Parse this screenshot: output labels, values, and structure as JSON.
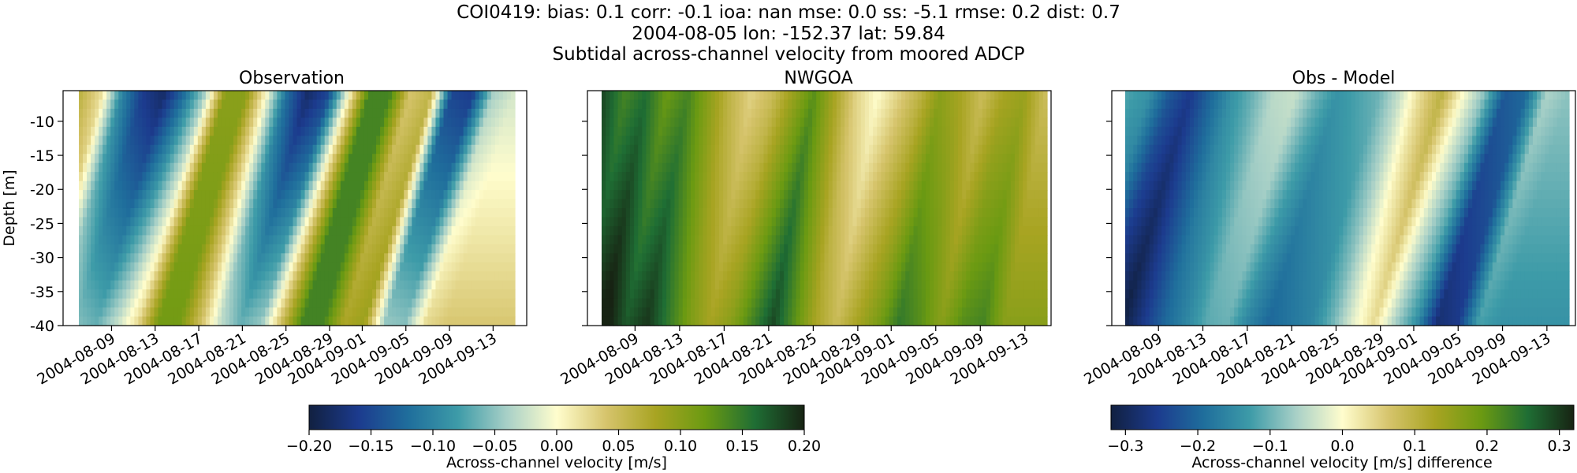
{
  "figure": {
    "title_line1": "COI0419: bias: 0.1  corr: -0.1  ioa: nan  mse: 0.0  ss: -5.1  rmse: 0.2  dist: 0.7",
    "title_line2": "2004-08-05 lon: -152.37 lat: 59.84",
    "title_line3": "Subtidal across-channel velocity from moored ADCP"
  },
  "chart_data": [
    {
      "type": "heatmap",
      "title": "Observation",
      "ylabel": "Depth [m]",
      "ylim": [
        -40,
        -5.5
      ],
      "yticks": [
        "-10",
        "-15",
        "-20",
        "-25",
        "-30",
        "-35",
        "-40"
      ],
      "xticks": [
        "2004-08-09",
        "2004-08-13",
        "2004-08-17",
        "2004-08-21",
        "2004-08-25",
        "2004-08-29",
        "2004-09-01",
        "2004-09-05",
        "2004-09-09",
        "2004-09-13"
      ],
      "x_start": "2004-08-06",
      "x_end": "2004-09-15",
      "colormap": "delta",
      "vmin": -0.2,
      "vmax": 0.2,
      "approx_surface_velocity": [
        0.06,
        0.02,
        -0.1,
        -0.16,
        -0.18,
        -0.12,
        -0.04,
        0.1,
        0.1,
        0.0,
        -0.12,
        -0.18,
        -0.15,
        0.0,
        0.14,
        0.14,
        0.04,
        0.06,
        -0.15,
        -0.16,
        -0.04,
        -0.02
      ]
    },
    {
      "type": "heatmap",
      "title": "NWGOA",
      "ylabel": "",
      "ylim": [
        -40,
        -5.5
      ],
      "yticks": [
        "-10",
        "-15",
        "-20",
        "-25",
        "-30",
        "-35",
        "-40"
      ],
      "xticks": [
        "2004-08-09",
        "2004-08-13",
        "2004-08-17",
        "2004-08-21",
        "2004-08-25",
        "2004-08-29",
        "2004-09-01",
        "2004-09-05",
        "2004-09-09",
        "2004-09-13"
      ],
      "x_start": "2004-08-06",
      "x_end": "2004-09-15",
      "colormap": "delta",
      "vmin": -0.2,
      "vmax": 0.2,
      "approx_surface_velocity": [
        0.18,
        0.14,
        0.16,
        0.12,
        0.14,
        0.1,
        0.06,
        0.03,
        0.05,
        0.09,
        0.13,
        0.08,
        0.03,
        0.0,
        0.03,
        0.06,
        0.1,
        0.08,
        0.05,
        0.08,
        0.09,
        0.05
      ]
    },
    {
      "type": "heatmap",
      "title": "Obs - Model",
      "ylabel": "",
      "ylim": [
        -40,
        -5.5
      ],
      "yticks": [
        "-10",
        "-15",
        "-20",
        "-25",
        "-30",
        "-35",
        "-40"
      ],
      "xticks": [
        "2004-08-09",
        "2004-08-13",
        "2004-08-17",
        "2004-08-21",
        "2004-08-25",
        "2004-08-29",
        "2004-09-01",
        "2004-09-05",
        "2004-09-09",
        "2004-09-13"
      ],
      "x_start": "2004-08-06",
      "x_end": "2004-09-15",
      "colormap": "delta",
      "vmin": -0.32,
      "vmax": 0.32,
      "approx_surface_velocity": [
        -0.12,
        -0.14,
        -0.22,
        -0.26,
        -0.2,
        -0.14,
        -0.1,
        -0.05,
        -0.04,
        -0.1,
        -0.14,
        -0.12,
        -0.1,
        -0.04,
        0.04,
        0.1,
        0.0,
        -0.08,
        -0.22,
        -0.2,
        -0.06,
        -0.08
      ]
    }
  ],
  "colorbars": [
    {
      "label": "Across-channel velocity [m/s]",
      "vmin": -0.2,
      "vmax": 0.2,
      "ticks": [
        "−0.20",
        "−0.15",
        "−0.10",
        "−0.05",
        "0.00",
        "0.05",
        "0.10",
        "0.15",
        "0.20"
      ]
    },
    {
      "label": "Across-channel velocity [m/s] difference",
      "vmin": -0.32,
      "vmax": 0.32,
      "ticks": [
        "−0.3",
        "−0.2",
        "−0.1",
        "0.0",
        "0.1",
        "0.2",
        "0.3"
      ]
    }
  ],
  "colors": {
    "cmap_stops": [
      "#112040",
      "#1c3b8e",
      "#1f6e9c",
      "#3d9ba8",
      "#a8d0c7",
      "#fffdcd",
      "#d6c46c",
      "#a8a422",
      "#6b9a12",
      "#1f6e34",
      "#172313"
    ]
  }
}
